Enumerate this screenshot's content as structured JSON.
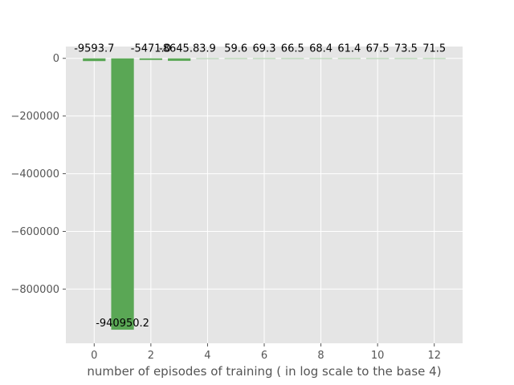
{
  "chart_data": {
    "type": "bar",
    "title": "",
    "xlabel": "number of episodes of training ( in log scale to the base 4)",
    "ylabel": "",
    "x": [
      0,
      1,
      2,
      3,
      4,
      5,
      6,
      7,
      8,
      9,
      10,
      11,
      12
    ],
    "values": [
      -9593.7,
      -940950.2,
      -5471.0,
      -8645.8,
      3.9,
      59.6,
      69.3,
      66.5,
      68.4,
      61.4,
      67.5,
      73.5,
      71.5
    ],
    "data_labels": [
      "-9593.7",
      "-940950.2",
      "-5471.0",
      "-8645.8",
      "3.9",
      "59.6",
      "69.3",
      "66.5",
      "68.4",
      "61.4",
      "67.5",
      "73.5",
      "71.5"
    ],
    "xlim": [
      -1,
      13
    ],
    "ylim": [
      -988000,
      41000
    ],
    "x_ticks": [
      0,
      2,
      4,
      6,
      8,
      10,
      12
    ],
    "y_ticks": [
      0,
      -200000,
      -400000,
      -600000,
      -800000
    ],
    "x_tick_labels": [
      "0",
      "2",
      "4",
      "6",
      "8",
      "10",
      "12"
    ],
    "y_tick_labels": [
      "0",
      "−200000",
      "−400000",
      "−600000",
      "−800000"
    ],
    "grid": true,
    "style": "ggplot",
    "bar_color": "#5aa755",
    "background_color": "#e5e5e5",
    "grid_color": "#ffffff"
  }
}
